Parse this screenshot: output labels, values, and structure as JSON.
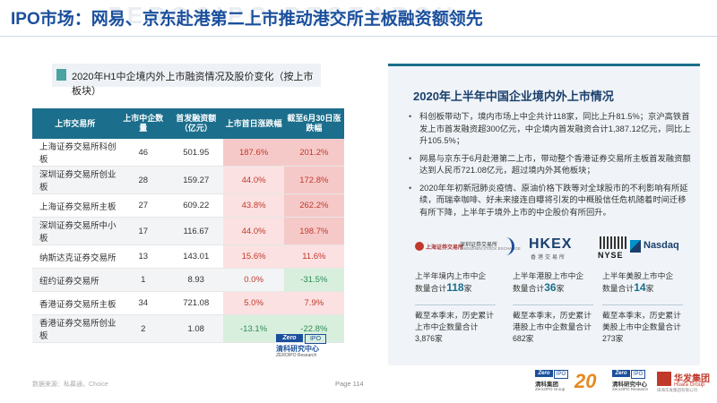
{
  "header": {
    "title": "IPO市场：网易、京东赴港第二上市推动港交所主板融资额领先",
    "watermark": "ZEROCIPO RESEARCH"
  },
  "table_section": {
    "caption": "2020年H1中企境内外上市融资情况及股价变化（按上市板块）",
    "columns": [
      "上市交易所",
      "上市中企数量",
      "首发融资额（亿元）",
      "上市首日涨跌幅",
      "截至6月30日涨跌幅"
    ],
    "rows": [
      {
        "exchange": "上海证券交易所科创板",
        "count": "46",
        "amount": "501.95",
        "day1": "187.6%",
        "jun30": "201.2%"
      },
      {
        "exchange": "深圳证券交易所创业板",
        "count": "28",
        "amount": "159.27",
        "day1": "44.0%",
        "jun30": "172.8%"
      },
      {
        "exchange": "上海证券交易所主板",
        "count": "27",
        "amount": "609.22",
        "day1": "43.8%",
        "jun30": "262.2%"
      },
      {
        "exchange": "深圳证券交易所中小板",
        "count": "17",
        "amount": "116.67",
        "day1": "44.0%",
        "jun30": "198.7%"
      },
      {
        "exchange": "纳斯达克证券交易所",
        "count": "13",
        "amount": "143.01",
        "day1": "15.6%",
        "jun30": "11.6%"
      },
      {
        "exchange": "纽约证券交易所",
        "count": "1",
        "amount": "8.93",
        "day1": "0.0%",
        "jun30": "-31.5%"
      },
      {
        "exchange": "香港证券交易所主板",
        "count": "34",
        "amount": "721.08",
        "day1": "5.0%",
        "jun30": "7.9%"
      },
      {
        "exchange": "香港证券交易所创业板",
        "count": "2",
        "amount": "1.08",
        "day1": "-13.1%",
        "jun30": "-22.8%"
      }
    ],
    "colors": {
      "header_bg": "#1b6e8c",
      "positive": "#c0392b",
      "negative": "#2e8b57"
    }
  },
  "zero_logo": {
    "badge": "Zero",
    "badge2": "IPO",
    "name": "清科研究中心",
    "en": "ZEROIPO Research"
  },
  "footer": {
    "source": "数据来源：私募通，Choice",
    "page": "Page  114"
  },
  "panel": {
    "title": "2020年上半年中国企业境内外上市情况",
    "bullets": [
      "科创板带动下，境内市场上中企共计118家，同比上升81.5%；京沪高铁首发上市首发融资超300亿元，中企境内首发融资合计1,387.12亿元，同比上升105.5%；",
      "网易与京东于6月赴港第二上市，带动整个香港证券交易所主板首发融资额达到人民币721.08亿元，超过境内外其他板块；",
      "2020年年初新冠肺炎疫情、原油价格下跌等对全球股市的不利影响有所延续，而瑞幸咖啡、好未来接连自曝将引发的中概股信任危机随着时间迁移有所下降，上半年于境外上市的中企股价有所回升。"
    ],
    "logos": {
      "sse": "上海证券交易所",
      "szse_cn": "深圳证券交易所",
      "szse_en": "SHENZHEN STOCK EXCHANGE",
      "hkex": "HKEX",
      "hkex_cn": "香港交易所",
      "nyse": "NYSE",
      "nasdaq": "Nasdaq"
    },
    "stats": [
      {
        "line1": "上半年境内上市中企",
        "line2_pre": "数量合计",
        "num": "118",
        "unit": "家",
        "cum1": "截至本季末，历史累计",
        "cum2": "上市中企数量合计",
        "cum3": "3,876家"
      },
      {
        "line1": "上半年港股上市中企",
        "line2_pre": "数量合计",
        "num": "36",
        "unit": "家",
        "cum1": "截至本季末，历史累计",
        "cum2": "港股上市中企数量合计",
        "cum3": "682家"
      },
      {
        "line1": "上半年美股上市中企",
        "line2_pre": "数量合计",
        "num": "14",
        "unit": "家",
        "cum1": "截至本季末，历史累计",
        "cum2": "美股上市中企数量合计",
        "cum3": "273家"
      }
    ]
  },
  "bottom_logos": {
    "zero1_badge": "Zero",
    "zero1_badge2": "IPO",
    "zero1_name": "清科集团",
    "zero1_en": "Zero2IPO Group",
    "anniv": "20",
    "zero2_badge": "Zero",
    "zero2_badge2": "IPO",
    "zero2_name": "清科研究中心",
    "zero2_en": "Zero2IPO Research",
    "huafa": "华发集团",
    "huafa_en": "Huafa Group",
    "huafa_sub": "珠海华发集团有限公司"
  }
}
